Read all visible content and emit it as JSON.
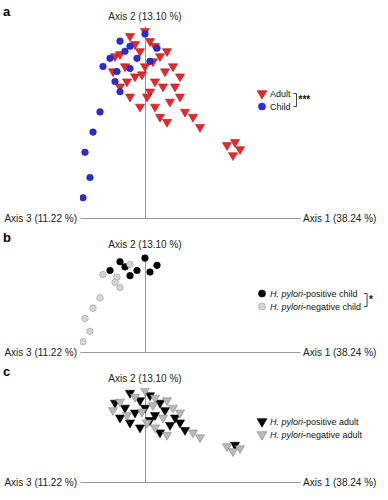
{
  "chart_data": [
    {
      "type": "scatter",
      "title": "a",
      "x_label": "Axis 1 (38.24 %)",
      "y_label": "Axis 2 (13.10 %)",
      "z_label": "Axis 3 (11.22 %)",
      "xlim": [
        -6.5,
        15.5
      ],
      "ylim": [
        0,
        19
      ],
      "xticks": [],
      "yticks": [],
      "tick_labels": false,
      "grid": false,
      "legend": "right",
      "annotations": [
        "***"
      ],
      "series": [
        {
          "name": "Adult",
          "color": "#e8272a",
          "marker": "triangle-down",
          "x": [
            -1.5,
            0.5,
            -0.5,
            1.5,
            -2,
            0,
            2,
            -1,
            1,
            -2.5,
            0.5,
            3,
            2.5,
            -1.5,
            4,
            1.5,
            -0.5,
            3.5,
            9,
            -3,
            0,
            1,
            -1,
            2.2,
            -2.5,
            0.8,
            -0.3,
            2.8,
            1.8,
            -1.8,
            0.2,
            3.5,
            1,
            2.2,
            4.8,
            5.5,
            8.2,
            8.8,
            9.5,
            -3.2
          ],
          "values": [
            18,
            17.5,
            16.5,
            16,
            15,
            15,
            14.5,
            14,
            13.5,
            13,
            12.5,
            13,
            11.5,
            12,
            10.5,
            10,
            11,
            12,
            7.5,
            16,
            18.5,
            17,
            17.2,
            16.5,
            16.2,
            15.5,
            14.2,
            15,
            13,
            13.5,
            12,
            14,
            11,
            9.5,
            10,
            9,
            7.2,
            6.2,
            6.8,
            14.5
          ]
        },
        {
          "name": "Child",
          "color": "#2b2bd9",
          "marker": "circle",
          "x": [
            -2.5,
            0,
            1.2,
            -0.8,
            0.5,
            -1.5,
            -3.5,
            -2,
            -1.5,
            -2.8,
            -4.2,
            -3,
            -2.5,
            -4.5,
            -5.2,
            -6,
            -5.5,
            -6.2
          ],
          "values": [
            17.5,
            18.2,
            16.8,
            15.8,
            15.5,
            14.8,
            15.8,
            16.5,
            17,
            14.5,
            15,
            13.5,
            12.5,
            10.5,
            8.5,
            6.5,
            4,
            2
          ]
        }
      ]
    },
    {
      "type": "scatter",
      "title": "b",
      "x_label": "Axis 1 (38.24 %)",
      "y_label": "Axis 2 (13.10 %)",
      "z_label": "Axis 3 (11.22 %)",
      "xlim": [
        -6.5,
        15.5
      ],
      "ylim": [
        0,
        19
      ],
      "xticks": [],
      "yticks": [],
      "tick_labels": false,
      "grid": false,
      "legend": "right",
      "annotations": [
        "*"
      ],
      "series": [
        {
          "name": "H. pylori-positive child",
          "color": "#000000",
          "marker": "circle",
          "x": [
            -2.5,
            0,
            1.2,
            -0.8,
            0.5,
            -1.5,
            -3.5,
            -2
          ],
          "values": [
            17.5,
            18.2,
            16.8,
            15.8,
            15.5,
            14.8,
            15.8,
            16.5
          ]
        },
        {
          "name": "H. pylori-negative child",
          "color": "#d4d4d4",
          "marker": "circle",
          "x": [
            -1.5,
            -2.8,
            -4.2,
            -3,
            -2.5,
            -4.5,
            -5.2,
            -6,
            -5.5,
            -6.2
          ],
          "values": [
            17,
            14.5,
            15,
            13.5,
            12.5,
            10.5,
            8.5,
            6.5,
            4,
            2
          ]
        }
      ]
    },
    {
      "type": "scatter",
      "title": "c",
      "x_label": "Axis 1 (38.24 %)",
      "y_label": "Axis 2 (13.10 %)",
      "z_label": "Axis 3 (11.22 %)",
      "xlim": [
        -6.5,
        15.5
      ],
      "ylim": [
        0,
        19
      ],
      "xticks": [],
      "yticks": [],
      "tick_labels": false,
      "grid": false,
      "legend": "right",
      "series": [
        {
          "name": "H. pylori-positive adult",
          "color": "#000000",
          "marker": "triangle-down",
          "x": [
            -1.5,
            0.5,
            -0.5,
            1.5,
            -2,
            0,
            2,
            -1,
            1,
            -2.5,
            0.5,
            3,
            2.5,
            -1.5,
            4,
            1.5,
            -0.5,
            3.5,
            9,
            -3
          ],
          "values": [
            18,
            17.5,
            16.5,
            16,
            15,
            15,
            14.5,
            14,
            13.5,
            13,
            12.5,
            13,
            11.5,
            12,
            10.5,
            10,
            11,
            12,
            7.5,
            16
          ]
        },
        {
          "name": "H. pylori-negative adult",
          "color": "#b8b8b8",
          "marker": "triangle-down",
          "x": [
            0,
            1,
            -1,
            2.2,
            -2.5,
            0.8,
            -0.3,
            2.8,
            1.8,
            -1.8,
            0.2,
            3.5,
            1,
            2.2,
            4.8,
            5.5,
            8.2,
            8.8,
            9.5,
            -3.2
          ],
          "values": [
            18.5,
            17,
            17.2,
            16.5,
            16.2,
            15.5,
            14.2,
            15,
            13,
            13.5,
            12,
            14,
            11,
            9.5,
            10,
            9,
            7.2,
            6.2,
            6.8,
            14.5
          ]
        }
      ]
    }
  ]
}
